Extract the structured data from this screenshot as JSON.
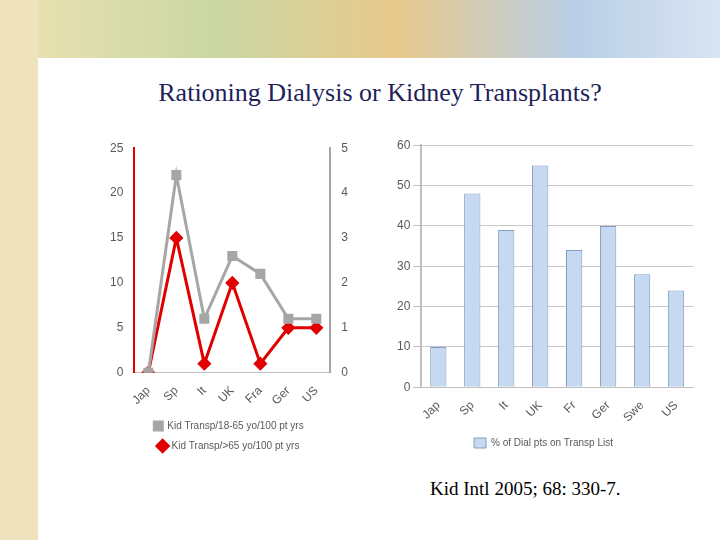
{
  "title": "Rationing Dialysis or Kidney Transplants?",
  "source": "Kid Intl 2005; 68: 330-7.",
  "chart_data": [
    {
      "type": "line",
      "categories": [
        "Jap",
        "Sp",
        "It",
        "UK",
        "Fra",
        "Ger",
        "US"
      ],
      "series": [
        {
          "name": "Kid Transp/18-65 yo/100 pt yrs",
          "color": "#a6a6a6",
          "marker": "square",
          "axis": "y2",
          "values": [
            0,
            4.4,
            1.2,
            2.6,
            2.2,
            1.2,
            1.2
          ]
        },
        {
          "name": "Kid Transp/>65 yo/100 pt yrs",
          "color": "#e00000",
          "marker": "diamond",
          "values": [
            0,
            15,
            1,
            10,
            1,
            5,
            5
          ]
        }
      ],
      "ylim": [
        0,
        25
      ],
      "yticks": [
        0,
        5,
        10,
        15,
        20,
        25
      ],
      "y2lim": [
        0,
        5
      ],
      "y2ticks": [
        0,
        1,
        2,
        3,
        4,
        5
      ],
      "grid": false,
      "legend": "bottom"
    },
    {
      "type": "bar",
      "categories": [
        "Jap",
        "Sp",
        "It",
        "UK",
        "Fr",
        "Ger",
        "Swe",
        "US"
      ],
      "series": [
        {
          "name": "% of Dial pts on Transp List",
          "color": "#c6d9f0",
          "values": [
            10,
            48,
            39,
            55,
            34,
            40,
            28,
            24
          ]
        }
      ],
      "ylim": [
        0,
        60
      ],
      "yticks": [
        0,
        10,
        20,
        30,
        40,
        50,
        60
      ],
      "grid": true,
      "legend": "bottom"
    }
  ]
}
